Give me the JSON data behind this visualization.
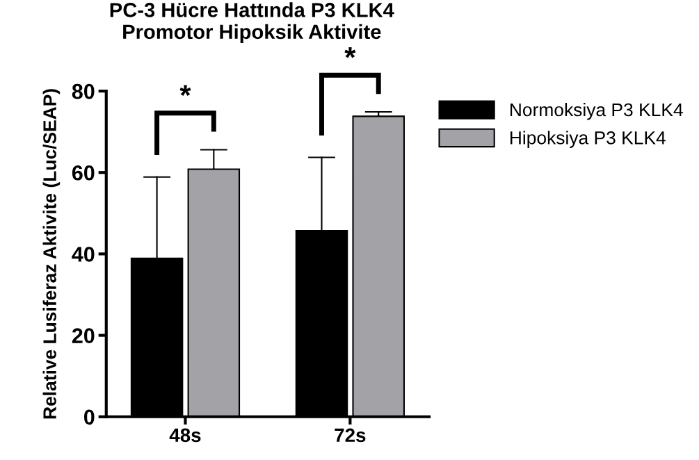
{
  "chart_data": {
    "type": "bar",
    "title": "PC-3 Hücre Hattında P3 KLK4\nPromotor Hipoksik Aktivite",
    "ylabel": "Relative Lusiferaz Aktivite (Luc/SEAP)",
    "categories": [
      "48s",
      "72s"
    ],
    "series": [
      {
        "name": "Normoksiya P3 KLK4",
        "color": "#000000",
        "values": [
          38.9,
          45.7
        ],
        "errors": [
          [
            38.9,
            58.9
          ],
          [
            45.7,
            63.7
          ]
        ]
      },
      {
        "name": "Hipoksiya P3 KLK4",
        "color": "#a3a2a7",
        "values": [
          60.8,
          73.8
        ],
        "errors": [
          [
            60.8,
            65.6
          ],
          [
            73.8,
            74.9
          ]
        ]
      }
    ],
    "annotations": [
      "*",
      "*"
    ],
    "ylim": [
      0,
      80
    ],
    "yticks": [
      0,
      20,
      40,
      60,
      80
    ],
    "grid": false,
    "legend": "top right"
  }
}
